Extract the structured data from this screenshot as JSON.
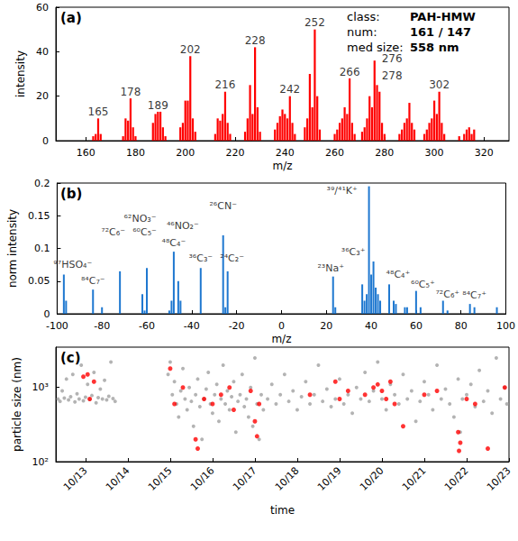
{
  "chart_data": [
    {
      "type": "bar",
      "panel_label": "(a)",
      "xlabel": "m/z",
      "ylabel": "intensity",
      "xlim": [
        148,
        330
      ],
      "xticks": [
        160,
        180,
        200,
        220,
        240,
        260,
        280,
        300,
        320
      ],
      "ylim": [
        0,
        60
      ],
      "yticks": [
        0,
        20,
        40,
        60
      ],
      "grid": false,
      "series": [
        {
          "color": "#ff0000",
          "x": [
            163,
            164,
            165,
            166,
            175,
            176,
            177,
            178,
            179,
            180,
            187,
            188,
            189,
            190,
            191,
            192,
            198,
            199,
            200,
            201,
            202,
            203,
            204,
            212,
            213,
            214,
            215,
            216,
            217,
            218,
            224,
            225,
            226,
            227,
            228,
            229,
            230,
            236,
            237,
            238,
            239,
            240,
            241,
            242,
            243,
            244,
            248,
            249,
            250,
            251,
            252,
            253,
            254,
            260,
            261,
            262,
            263,
            264,
            265,
            266,
            267,
            268,
            271,
            272,
            273,
            274,
            275,
            276,
            277,
            278,
            279,
            280,
            286,
            287,
            288,
            289,
            290,
            291,
            292,
            296,
            297,
            298,
            299,
            300,
            301,
            302,
            303,
            304,
            310,
            312,
            313,
            314,
            315,
            316
          ],
          "values": [
            2,
            3,
            10,
            3,
            2,
            10,
            9,
            19,
            6,
            2,
            8,
            12,
            13,
            13,
            6,
            2,
            6,
            8,
            18,
            18,
            38,
            10,
            4,
            3,
            10,
            9,
            12,
            22,
            8,
            3,
            4,
            10,
            25,
            12,
            42,
            15,
            4,
            5,
            8,
            11,
            14,
            12,
            10,
            20,
            8,
            3,
            6,
            10,
            30,
            15,
            50,
            20,
            5,
            3,
            5,
            8,
            10,
            15,
            12,
            28,
            8,
            3,
            4,
            6,
            10,
            20,
            15,
            36,
            25,
            22,
            8,
            3,
            3,
            5,
            8,
            10,
            17,
            8,
            5,
            3,
            5,
            8,
            10,
            18,
            12,
            22,
            8,
            3,
            2,
            3,
            5,
            6,
            3,
            5
          ]
        }
      ],
      "annotations": [
        {
          "text": "165",
          "x": 165,
          "y": 13
        },
        {
          "text": "178",
          "x": 178,
          "y": 22
        },
        {
          "text": "189",
          "x": 189,
          "y": 16
        },
        {
          "text": "202",
          "x": 202,
          "y": 41
        },
        {
          "text": "216",
          "x": 216,
          "y": 25
        },
        {
          "text": "228",
          "x": 228,
          "y": 45
        },
        {
          "text": "242",
          "x": 242,
          "y": 23
        },
        {
          "text": "252",
          "x": 252,
          "y": 53
        },
        {
          "text": "266",
          "x": 266,
          "y": 31
        },
        {
          "text": "276",
          "x": 283,
          "y": 37
        },
        {
          "text": "278",
          "x": 283,
          "y": 29
        },
        {
          "text": "302",
          "x": 302,
          "y": 25
        }
      ],
      "info": [
        {
          "label": "class:",
          "value": "PAH-HMW"
        },
        {
          "label": "num:",
          "value": "161 / 147"
        },
        {
          "label": "med size:",
          "value": "558 nm"
        }
      ]
    },
    {
      "type": "bar",
      "panel_label": "(b)",
      "xlabel": "m/z",
      "ylabel": "norm intensity",
      "xlim": [
        -100,
        100
      ],
      "xticks": [
        -100,
        -80,
        -60,
        -40,
        -20,
        0,
        20,
        40,
        60,
        80,
        100
      ],
      "ylim": [
        0,
        0.2
      ],
      "yticks": [
        0,
        0.05,
        0.1,
        0.15,
        0.2
      ],
      "grid": false,
      "series": [
        {
          "color": "#1f78d0",
          "x": [
            -97,
            -96,
            -84,
            -80,
            -72,
            -62,
            -61,
            -60,
            -50,
            -49,
            -48,
            -46,
            -45,
            -36,
            -26,
            -25,
            -24,
            23,
            24,
            36,
            37,
            38,
            39,
            40,
            41,
            42,
            43,
            44,
            48,
            50,
            51,
            55,
            56,
            60,
            62,
            72,
            74,
            84,
            86,
            96
          ],
          "values": [
            0.06,
            0.02,
            0.037,
            0.01,
            0.065,
            0.03,
            0.005,
            0.07,
            0.005,
            0.02,
            0.095,
            0.05,
            0.02,
            0.07,
            0.12,
            0.01,
            0.065,
            0.057,
            0.01,
            0.045,
            0.02,
            0.03,
            0.195,
            0.06,
            0.08,
            0.04,
            0.03,
            0.02,
            0.045,
            0.02,
            0.015,
            0.01,
            0.01,
            0.035,
            0.01,
            0.02,
            0.005,
            0.015,
            0.01,
            0.01
          ]
        }
      ],
      "annotations": [
        {
          "text": "⁹⁷HSO₄⁻",
          "x": -93,
          "y": 0.075
        },
        {
          "text": "⁸⁴C₇⁻",
          "x": -84,
          "y": 0.05
        },
        {
          "text": "⁷²C₆⁻",
          "x": -75,
          "y": 0.125
        },
        {
          "text": "⁶²NO₃⁻",
          "x": -63,
          "y": 0.145
        },
        {
          "text": "⁶⁰C₅⁻",
          "x": -61,
          "y": 0.125
        },
        {
          "text": "⁴⁸C₄⁻",
          "x": -48,
          "y": 0.108
        },
        {
          "text": "⁴⁶NO₂⁻",
          "x": -44,
          "y": 0.135
        },
        {
          "text": "³⁶C₃⁻",
          "x": -36,
          "y": 0.085
        },
        {
          "text": "²⁶CN⁻",
          "x": -26,
          "y": 0.165
        },
        {
          "text": "²⁴C₂⁻",
          "x": -22,
          "y": 0.085
        },
        {
          "text": "²³Na⁺",
          "x": 22,
          "y": 0.07
        },
        {
          "text": "³⁹/⁴¹K⁺",
          "x": 27,
          "y": 0.188
        },
        {
          "text": "³⁶C₃⁺",
          "x": 32,
          "y": 0.095
        },
        {
          "text": "⁴⁸C₄⁺",
          "x": 52,
          "y": 0.06
        },
        {
          "text": "⁶⁰C₅⁺",
          "x": 63,
          "y": 0.045
        },
        {
          "text": "⁷²C₆⁺",
          "x": 74,
          "y": 0.03
        },
        {
          "text": "⁸⁴C₇⁺",
          "x": 86,
          "y": 0.028
        }
      ]
    },
    {
      "type": "scatter",
      "panel_label": "(c)",
      "xlabel": "time",
      "ylabel": "particle size (nm)",
      "log": "y",
      "grid": false,
      "xlim": [
        12.3,
        23.0
      ],
      "xticks": [
        {
          "value": 13,
          "label": "10/13"
        },
        {
          "value": 14,
          "label": "10/14"
        },
        {
          "value": 15,
          "label": "10/15"
        },
        {
          "value": 16,
          "label": "10/16"
        },
        {
          "value": 17,
          "label": "10/17"
        },
        {
          "value": 18,
          "label": "10/18"
        },
        {
          "value": 19,
          "label": "10/19"
        },
        {
          "value": 20,
          "label": "10/20"
        },
        {
          "value": 21,
          "label": "10/21"
        },
        {
          "value": 22,
          "label": "10/22"
        },
        {
          "value": 23,
          "label": "10/23"
        }
      ],
      "ylim": [
        100,
        3500
      ],
      "yticks": [
        {
          "value": 100,
          "label": "10²"
        },
        {
          "value": 1000,
          "label": "10³"
        }
      ],
      "series": [
        {
          "color": "#a0a0a0",
          "x": [
            12.35,
            12.4,
            12.45,
            12.5,
            12.55,
            12.6,
            12.65,
            12.7,
            12.75,
            12.8,
            12.85,
            12.9,
            12.95,
            13.0,
            13.05,
            13.1,
            13.15,
            13.2,
            13.25,
            13.3,
            13.35,
            13.4,
            13.45,
            13.5,
            13.55,
            13.6,
            13.65,
            13.7,
            14.95,
            15.0,
            15.05,
            15.1,
            15.15,
            15.2,
            15.25,
            15.3,
            15.35,
            15.4,
            15.45,
            15.5,
            15.55,
            15.6,
            15.65,
            15.7,
            15.75,
            15.8,
            15.85,
            15.9,
            15.95,
            16.0,
            16.05,
            16.1,
            16.15,
            16.2,
            16.25,
            16.3,
            16.35,
            16.4,
            16.45,
            16.5,
            16.55,
            16.6,
            16.65,
            16.7,
            16.75,
            16.8,
            16.85,
            16.9,
            16.95,
            17.0,
            17.05,
            17.1,
            17.15,
            17.2,
            17.3,
            17.4,
            17.5,
            17.6,
            17.7,
            17.8,
            17.9,
            18.0,
            18.1,
            18.2,
            18.3,
            18.4,
            18.5,
            18.6,
            18.7,
            18.8,
            18.9,
            19.0,
            19.1,
            19.2,
            19.3,
            19.4,
            19.5,
            19.6,
            19.7,
            19.8,
            19.9,
            20.0,
            20.1,
            20.2,
            20.3,
            20.4,
            20.5,
            20.6,
            20.7,
            20.8,
            20.9,
            21.0,
            21.1,
            21.2,
            21.3,
            21.4,
            21.5,
            21.6,
            21.7,
            21.8,
            21.85,
            21.9,
            22.0,
            22.1,
            22.2,
            22.3,
            22.4,
            22.5,
            22.6,
            22.7,
            22.8,
            22.9,
            22.95
          ],
          "values": [
            700,
            650,
            900,
            720,
            1300,
            680,
            750,
            1500,
            640,
            820,
            700,
            2000,
            660,
            740,
            1100,
            690,
            780,
            1600,
            620,
            730,
            950,
            700,
            1250,
            680,
            760,
            2200,
            710,
            650,
            1500,
            2200,
            800,
            1200,
            600,
            400,
            900,
            1800,
            700,
            500,
            1000,
            650,
            300,
            800,
            1300,
            550,
            200,
            700,
            950,
            1600,
            600,
            450,
            800,
            1100,
            350,
            700,
            2000,
            600,
            900,
            500,
            750,
            1200,
            250,
            650,
            800,
            1500,
            550,
            700,
            400,
            1000,
            300,
            2500,
            600,
            200,
            800,
            500,
            700,
            1100,
            600,
            800,
            1500,
            650,
            900,
            500,
            750,
            1200,
            600,
            800,
            2000,
            650,
            950,
            550,
            700,
            1300,
            600,
            800,
            450,
            1000,
            700,
            1600,
            650,
            900,
            2200,
            700,
            500,
            1100,
            800,
            600,
            1500,
            700,
            900,
            350,
            650,
            1200,
            800,
            500,
            2000,
            700,
            950,
            600,
            400,
            1300,
            250,
            700,
            800,
            1100,
            550,
            1700,
            650,
            900,
            450,
            2500,
            700,
            1000,
            600
          ]
        },
        {
          "color": "#ff0000",
          "x": [
            12.95,
            13.05,
            13.1,
            13.2,
            15.0,
            15.1,
            15.3,
            15.6,
            15.65,
            15.8,
            16.0,
            16.2,
            16.4,
            16.5,
            16.9,
            17.0,
            17.05,
            17.1,
            18.3,
            18.9,
            19.0,
            19.2,
            19.6,
            19.8,
            19.9,
            20.0,
            20.1,
            20.2,
            20.3,
            20.5,
            21.0,
            21.3,
            21.8,
            21.82,
            21.85,
            22.0,
            22.2,
            22.5,
            22.9
          ],
          "values": [
            1400,
            1500,
            700,
            1200,
            1800,
            600,
            1000,
            200,
            150,
            700,
            600,
            800,
            1000,
            500,
            900,
            350,
            220,
            600,
            800,
            1200,
            700,
            900,
            800,
            1000,
            1100,
            900,
            700,
            1200,
            600,
            300,
            800,
            900,
            250,
            140,
            180,
            700,
            600,
            150,
            1000
          ]
        }
      ]
    }
  ]
}
